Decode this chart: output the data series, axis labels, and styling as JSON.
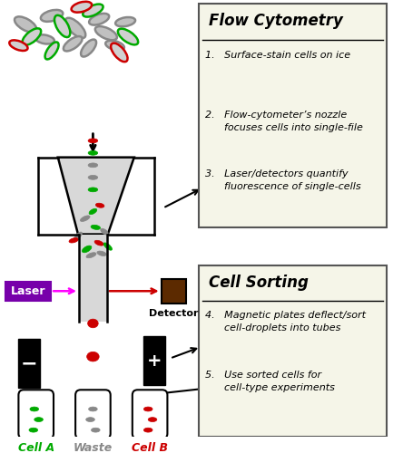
{
  "bg_color": "#ffffff",
  "box_bg": "#f5f5e8",
  "box_edge": "#555555",
  "title1": "Flow Cytometry",
  "title2": "Cell Sorting",
  "items_fc": [
    "1.   Surface-stain cells on ice",
    "2.   Flow-cytometer’s nozzle\n      focuses cells into single-file",
    "3.   Laser/detectors quantify\n      fluorescence of single-cells"
  ],
  "items_cs": [
    "4.   Magnetic plates deflect/sort\n      cell-droplets into tubes",
    "5.   Use sorted cells for\n      cell-type experiments"
  ],
  "label_a": "Cell A",
  "label_waste": "Waste",
  "label_b": "Cell B",
  "label_laser": "Laser",
  "label_detector": "Detector",
  "color_a": "#00aa00",
  "color_b": "#cc0000",
  "color_waste": "#888888",
  "color_laser_box": "#7700aa",
  "color_detector": "#5c2a00",
  "color_arrow_red": "#cc0000",
  "color_arrow_magenta": "#ff00ff"
}
